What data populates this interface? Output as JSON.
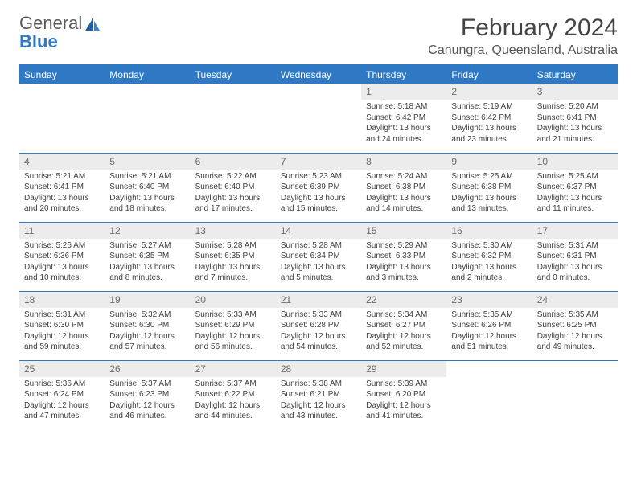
{
  "logo": {
    "word1": "General",
    "word2": "Blue",
    "icon_color": "#1e5fa8",
    "text_gray": "#5a5a5a"
  },
  "title": "February 2024",
  "location": "Canungra, Queensland, Australia",
  "colors": {
    "header_bg": "#2f78c4",
    "header_text": "#ffffff",
    "daynum_bg": "#ececec",
    "daynum_text": "#6a6a6a",
    "body_text": "#404040",
    "rule": "#2f78c4",
    "page_bg": "#ffffff"
  },
  "weekdays": [
    "Sunday",
    "Monday",
    "Tuesday",
    "Wednesday",
    "Thursday",
    "Friday",
    "Saturday"
  ],
  "fonts": {
    "title_pt": 30,
    "location_pt": 16,
    "weekday_pt": 12,
    "daynum_pt": 12,
    "body_pt": 10
  },
  "weeks": [
    [
      null,
      null,
      null,
      null,
      {
        "day": "1",
        "sunrise": "Sunrise: 5:18 AM",
        "sunset": "Sunset: 6:42 PM",
        "daylight1": "Daylight: 13 hours",
        "daylight2": "and 24 minutes."
      },
      {
        "day": "2",
        "sunrise": "Sunrise: 5:19 AM",
        "sunset": "Sunset: 6:42 PM",
        "daylight1": "Daylight: 13 hours",
        "daylight2": "and 23 minutes."
      },
      {
        "day": "3",
        "sunrise": "Sunrise: 5:20 AM",
        "sunset": "Sunset: 6:41 PM",
        "daylight1": "Daylight: 13 hours",
        "daylight2": "and 21 minutes."
      }
    ],
    [
      {
        "day": "4",
        "sunrise": "Sunrise: 5:21 AM",
        "sunset": "Sunset: 6:41 PM",
        "daylight1": "Daylight: 13 hours",
        "daylight2": "and 20 minutes."
      },
      {
        "day": "5",
        "sunrise": "Sunrise: 5:21 AM",
        "sunset": "Sunset: 6:40 PM",
        "daylight1": "Daylight: 13 hours",
        "daylight2": "and 18 minutes."
      },
      {
        "day": "6",
        "sunrise": "Sunrise: 5:22 AM",
        "sunset": "Sunset: 6:40 PM",
        "daylight1": "Daylight: 13 hours",
        "daylight2": "and 17 minutes."
      },
      {
        "day": "7",
        "sunrise": "Sunrise: 5:23 AM",
        "sunset": "Sunset: 6:39 PM",
        "daylight1": "Daylight: 13 hours",
        "daylight2": "and 15 minutes."
      },
      {
        "day": "8",
        "sunrise": "Sunrise: 5:24 AM",
        "sunset": "Sunset: 6:38 PM",
        "daylight1": "Daylight: 13 hours",
        "daylight2": "and 14 minutes."
      },
      {
        "day": "9",
        "sunrise": "Sunrise: 5:25 AM",
        "sunset": "Sunset: 6:38 PM",
        "daylight1": "Daylight: 13 hours",
        "daylight2": "and 13 minutes."
      },
      {
        "day": "10",
        "sunrise": "Sunrise: 5:25 AM",
        "sunset": "Sunset: 6:37 PM",
        "daylight1": "Daylight: 13 hours",
        "daylight2": "and 11 minutes."
      }
    ],
    [
      {
        "day": "11",
        "sunrise": "Sunrise: 5:26 AM",
        "sunset": "Sunset: 6:36 PM",
        "daylight1": "Daylight: 13 hours",
        "daylight2": "and 10 minutes."
      },
      {
        "day": "12",
        "sunrise": "Sunrise: 5:27 AM",
        "sunset": "Sunset: 6:35 PM",
        "daylight1": "Daylight: 13 hours",
        "daylight2": "and 8 minutes."
      },
      {
        "day": "13",
        "sunrise": "Sunrise: 5:28 AM",
        "sunset": "Sunset: 6:35 PM",
        "daylight1": "Daylight: 13 hours",
        "daylight2": "and 7 minutes."
      },
      {
        "day": "14",
        "sunrise": "Sunrise: 5:28 AM",
        "sunset": "Sunset: 6:34 PM",
        "daylight1": "Daylight: 13 hours",
        "daylight2": "and 5 minutes."
      },
      {
        "day": "15",
        "sunrise": "Sunrise: 5:29 AM",
        "sunset": "Sunset: 6:33 PM",
        "daylight1": "Daylight: 13 hours",
        "daylight2": "and 3 minutes."
      },
      {
        "day": "16",
        "sunrise": "Sunrise: 5:30 AM",
        "sunset": "Sunset: 6:32 PM",
        "daylight1": "Daylight: 13 hours",
        "daylight2": "and 2 minutes."
      },
      {
        "day": "17",
        "sunrise": "Sunrise: 5:31 AM",
        "sunset": "Sunset: 6:31 PM",
        "daylight1": "Daylight: 13 hours",
        "daylight2": "and 0 minutes."
      }
    ],
    [
      {
        "day": "18",
        "sunrise": "Sunrise: 5:31 AM",
        "sunset": "Sunset: 6:30 PM",
        "daylight1": "Daylight: 12 hours",
        "daylight2": "and 59 minutes."
      },
      {
        "day": "19",
        "sunrise": "Sunrise: 5:32 AM",
        "sunset": "Sunset: 6:30 PM",
        "daylight1": "Daylight: 12 hours",
        "daylight2": "and 57 minutes."
      },
      {
        "day": "20",
        "sunrise": "Sunrise: 5:33 AM",
        "sunset": "Sunset: 6:29 PM",
        "daylight1": "Daylight: 12 hours",
        "daylight2": "and 56 minutes."
      },
      {
        "day": "21",
        "sunrise": "Sunrise: 5:33 AM",
        "sunset": "Sunset: 6:28 PM",
        "daylight1": "Daylight: 12 hours",
        "daylight2": "and 54 minutes."
      },
      {
        "day": "22",
        "sunrise": "Sunrise: 5:34 AM",
        "sunset": "Sunset: 6:27 PM",
        "daylight1": "Daylight: 12 hours",
        "daylight2": "and 52 minutes."
      },
      {
        "day": "23",
        "sunrise": "Sunrise: 5:35 AM",
        "sunset": "Sunset: 6:26 PM",
        "daylight1": "Daylight: 12 hours",
        "daylight2": "and 51 minutes."
      },
      {
        "day": "24",
        "sunrise": "Sunrise: 5:35 AM",
        "sunset": "Sunset: 6:25 PM",
        "daylight1": "Daylight: 12 hours",
        "daylight2": "and 49 minutes."
      }
    ],
    [
      {
        "day": "25",
        "sunrise": "Sunrise: 5:36 AM",
        "sunset": "Sunset: 6:24 PM",
        "daylight1": "Daylight: 12 hours",
        "daylight2": "and 47 minutes."
      },
      {
        "day": "26",
        "sunrise": "Sunrise: 5:37 AM",
        "sunset": "Sunset: 6:23 PM",
        "daylight1": "Daylight: 12 hours",
        "daylight2": "and 46 minutes."
      },
      {
        "day": "27",
        "sunrise": "Sunrise: 5:37 AM",
        "sunset": "Sunset: 6:22 PM",
        "daylight1": "Daylight: 12 hours",
        "daylight2": "and 44 minutes."
      },
      {
        "day": "28",
        "sunrise": "Sunrise: 5:38 AM",
        "sunset": "Sunset: 6:21 PM",
        "daylight1": "Daylight: 12 hours",
        "daylight2": "and 43 minutes."
      },
      {
        "day": "29",
        "sunrise": "Sunrise: 5:39 AM",
        "sunset": "Sunset: 6:20 PM",
        "daylight1": "Daylight: 12 hours",
        "daylight2": "and 41 minutes."
      },
      null,
      null
    ]
  ]
}
